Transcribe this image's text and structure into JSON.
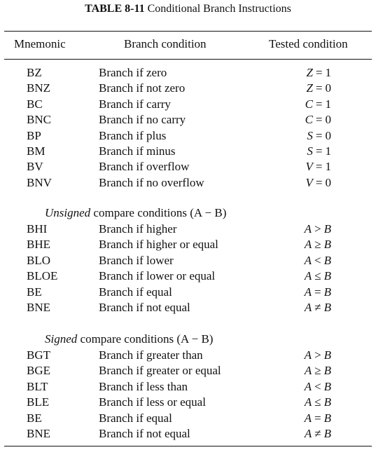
{
  "caption": {
    "label": "TABLE 8-11",
    "title": "Conditional Branch Instructions"
  },
  "columns": [
    "Mnemonic",
    "Branch condition",
    "Tested condition"
  ],
  "groups": [
    {
      "heading_emphasis": "",
      "heading_rest": "",
      "rows": [
        {
          "mnemonic": "BZ",
          "condition": "Branch if zero",
          "var": "Z",
          "op": "=",
          "val": "1"
        },
        {
          "mnemonic": "BNZ",
          "condition": "Branch if not zero",
          "var": "Z",
          "op": "=",
          "val": "0"
        },
        {
          "mnemonic": "BC",
          "condition": "Branch if carry",
          "var": "C",
          "op": "=",
          "val": "1"
        },
        {
          "mnemonic": "BNC",
          "condition": "Branch if no carry",
          "var": "C",
          "op": "=",
          "val": "0"
        },
        {
          "mnemonic": "BP",
          "condition": "Branch if plus",
          "var": "S",
          "op": "=",
          "val": "0"
        },
        {
          "mnemonic": "BM",
          "condition": "Branch if minus",
          "var": "S",
          "op": "=",
          "val": "1"
        },
        {
          "mnemonic": "BV",
          "condition": "Branch if overflow",
          "var": "V",
          "op": "=",
          "val": "1"
        },
        {
          "mnemonic": "BNV",
          "condition": "Branch if no overflow",
          "var": "V",
          "op": "=",
          "val": "0"
        }
      ]
    },
    {
      "heading_emphasis": "Unsigned",
      "heading_rest": " compare conditions (A − B)",
      "rows": [
        {
          "mnemonic": "BHI",
          "condition": "Branch if higher",
          "var": "A",
          "op": ">",
          "val": "B"
        },
        {
          "mnemonic": "BHE",
          "condition": "Branch if higher or equal",
          "var": "A",
          "op": "≥",
          "val": "B"
        },
        {
          "mnemonic": "BLO",
          "condition": "Branch if lower",
          "var": "A",
          "op": "<",
          "val": "B"
        },
        {
          "mnemonic": "BLOE",
          "condition": "Branch if lower or equal",
          "var": "A",
          "op": "≤",
          "val": "B"
        },
        {
          "mnemonic": "BE",
          "condition": "Branch if equal",
          "var": "A",
          "op": "=",
          "val": "B"
        },
        {
          "mnemonic": "BNE",
          "condition": "Branch if not equal",
          "var": "A",
          "op": "≠",
          "val": "B"
        }
      ]
    },
    {
      "heading_emphasis": "Signed",
      "heading_rest": " compare conditions (A − B)",
      "rows": [
        {
          "mnemonic": "BGT",
          "condition": "Branch if greater than",
          "var": "A",
          "op": ">",
          "val": "B"
        },
        {
          "mnemonic": "BGE",
          "condition": "Branch if greater or equal",
          "var": "A",
          "op": "≥",
          "val": "B"
        },
        {
          "mnemonic": "BLT",
          "condition": "Branch if less than",
          "var": "A",
          "op": "<",
          "val": "B"
        },
        {
          "mnemonic": "BLE",
          "condition": "Branch if less or equal",
          "var": "A",
          "op": "≤",
          "val": "B"
        },
        {
          "mnemonic": "BE",
          "condition": "Branch if equal",
          "var": "A",
          "op": "=",
          "val": "B"
        },
        {
          "mnemonic": "BNE",
          "condition": "Branch if not equal",
          "var": "A",
          "op": "≠",
          "val": "B"
        }
      ]
    }
  ]
}
